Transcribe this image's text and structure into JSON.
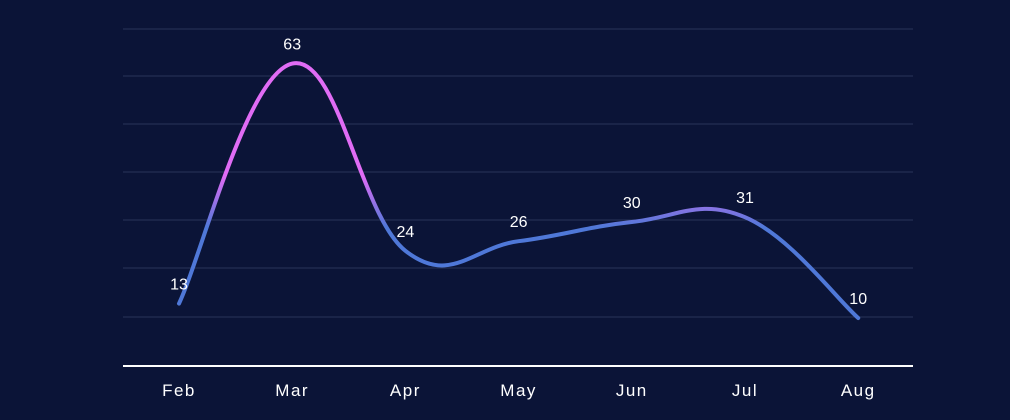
{
  "chart_data": {
    "type": "line",
    "categories": [
      "Feb",
      "Mar",
      "Apr",
      "May",
      "Jun",
      "Jul",
      "Aug"
    ],
    "values": [
      13,
      63,
      24,
      26,
      30,
      31,
      10
    ],
    "title": "",
    "xlabel": "",
    "ylabel": "",
    "ylim": [
      0,
      70
    ],
    "grid": true,
    "legend": "none",
    "smooth": true,
    "data_labels": true
  },
  "colors": {
    "background": "#0b1437",
    "line_magenta": "#e06cf5",
    "line_blue": "#4f78d8",
    "gridline": "#2a3558",
    "text": "#ffffff"
  }
}
